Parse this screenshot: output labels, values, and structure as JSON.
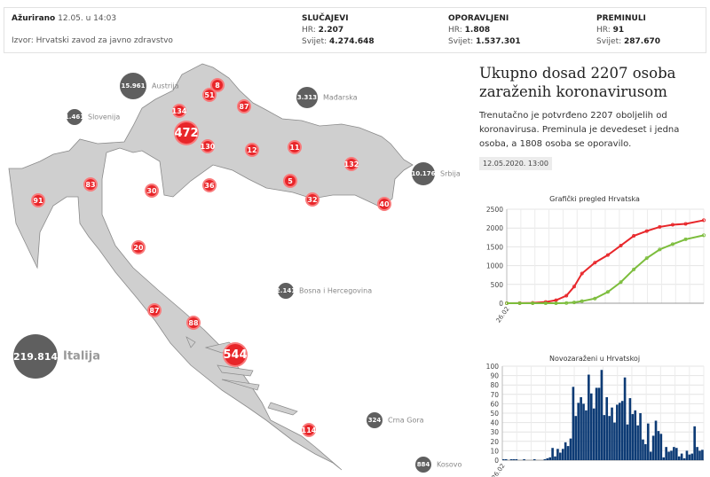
{
  "header": {
    "updated_label": "Ažurirano",
    "updated_value": "12.05. u 14:03",
    "source": "Izvor: Hrvatski zavod za javno zdravstvo",
    "stats": [
      {
        "title": "SLUČAJEVI",
        "hr_label": "HR:",
        "hr": "2.207",
        "world_label": "Svijet:",
        "world": "4.274.648"
      },
      {
        "title": "OPORAVLJENI",
        "hr_label": "HR:",
        "hr": "1.808",
        "world_label": "Svijet:",
        "world": "1.537.301"
      },
      {
        "title": "PREMINULI",
        "hr_label": "HR:",
        "hr": "91",
        "world_label": "Svijet:",
        "world": "287.670"
      }
    ]
  },
  "map": {
    "counties": [
      "8",
      "51",
      "87",
      "134",
      "472",
      "130",
      "12",
      "11",
      "132",
      "83",
      "91",
      "30",
      "36",
      "5",
      "32",
      "40",
      "20",
      "87",
      "88",
      "544",
      "114"
    ],
    "countries": [
      {
        "name": "Austrija",
        "value": "15.961"
      },
      {
        "name": "Mađarska",
        "value": "3.313"
      },
      {
        "name": "Slovenija",
        "value": "1.461"
      },
      {
        "name": "Srbija",
        "value": "10.176"
      },
      {
        "name": "Bosna i Hercegovina",
        "value": "2.141"
      },
      {
        "name": "Italija",
        "value": "219.814"
      },
      {
        "name": "Crna Gora",
        "value": "324"
      },
      {
        "name": "Kosovo",
        "value": "884"
      }
    ]
  },
  "side": {
    "title": "Ukupno dosad 2207 osoba zaraženih koronavirusom",
    "description": "Trenutačno je potvrđeno 2207 oboljelih od koronavirusa. Preminula je devedeset i jedna osoba, a 1808 osoba se oporavilo.",
    "date": "12.05.2020. 13:00"
  },
  "colors": {
    "cases": "#e8262a",
    "recovered": "#7cbd3c",
    "bars": "#0d3b75",
    "country": "#5f5f5f",
    "land": "#cfcfcf"
  },
  "chart_data": [
    {
      "type": "line",
      "title": "Grafički pregled Hrvatska",
      "xlabel": "",
      "ylabel": "",
      "x_tick": "26.02",
      "ylim": [
        0,
        2500
      ],
      "yticks": [
        0,
        500,
        1000,
        1500,
        2000,
        2500
      ],
      "x_days": [
        0,
        5,
        10,
        15,
        19,
        23,
        26,
        29,
        34,
        39,
        44,
        49,
        54,
        59,
        64,
        69,
        76
      ],
      "series": [
        {
          "name": "Slučajevi",
          "values": [
            1,
            3,
            10,
            32,
            80,
            200,
            442,
            790,
            1079,
            1282,
            1534,
            1791,
            1920,
            2030,
            2088,
            2112,
            2207
          ]
        },
        {
          "name": "Oporavljeni",
          "values": [
            0,
            0,
            0,
            0,
            1,
            5,
            20,
            55,
            125,
            300,
            560,
            900,
            1200,
            1430,
            1570,
            1700,
            1808
          ]
        }
      ]
    },
    {
      "type": "bar",
      "title": "Novozaraženi u Hrvatskoj",
      "x_tick": "26.02",
      "ylim": [
        0,
        100
      ],
      "yticks": [
        0,
        10,
        20,
        30,
        40,
        50,
        60,
        70,
        80,
        90,
        100
      ],
      "values": [
        1,
        1,
        0,
        1,
        1,
        1,
        0,
        0,
        1,
        0,
        0,
        0,
        1,
        0,
        0,
        0,
        1,
        2,
        3,
        13,
        4,
        12,
        8,
        12,
        19,
        15,
        23,
        78,
        47,
        61,
        67,
        60,
        53,
        91,
        71,
        55,
        77,
        77,
        96,
        48,
        67,
        47,
        56,
        40,
        59,
        61,
        63,
        88,
        38,
        66,
        49,
        53,
        37,
        50,
        22,
        17,
        39,
        9,
        26,
        42,
        31,
        28,
        3,
        14,
        9,
        10,
        14,
        13,
        4,
        7,
        2,
        10,
        6,
        7,
        36,
        14,
        10,
        11
      ]
    }
  ]
}
